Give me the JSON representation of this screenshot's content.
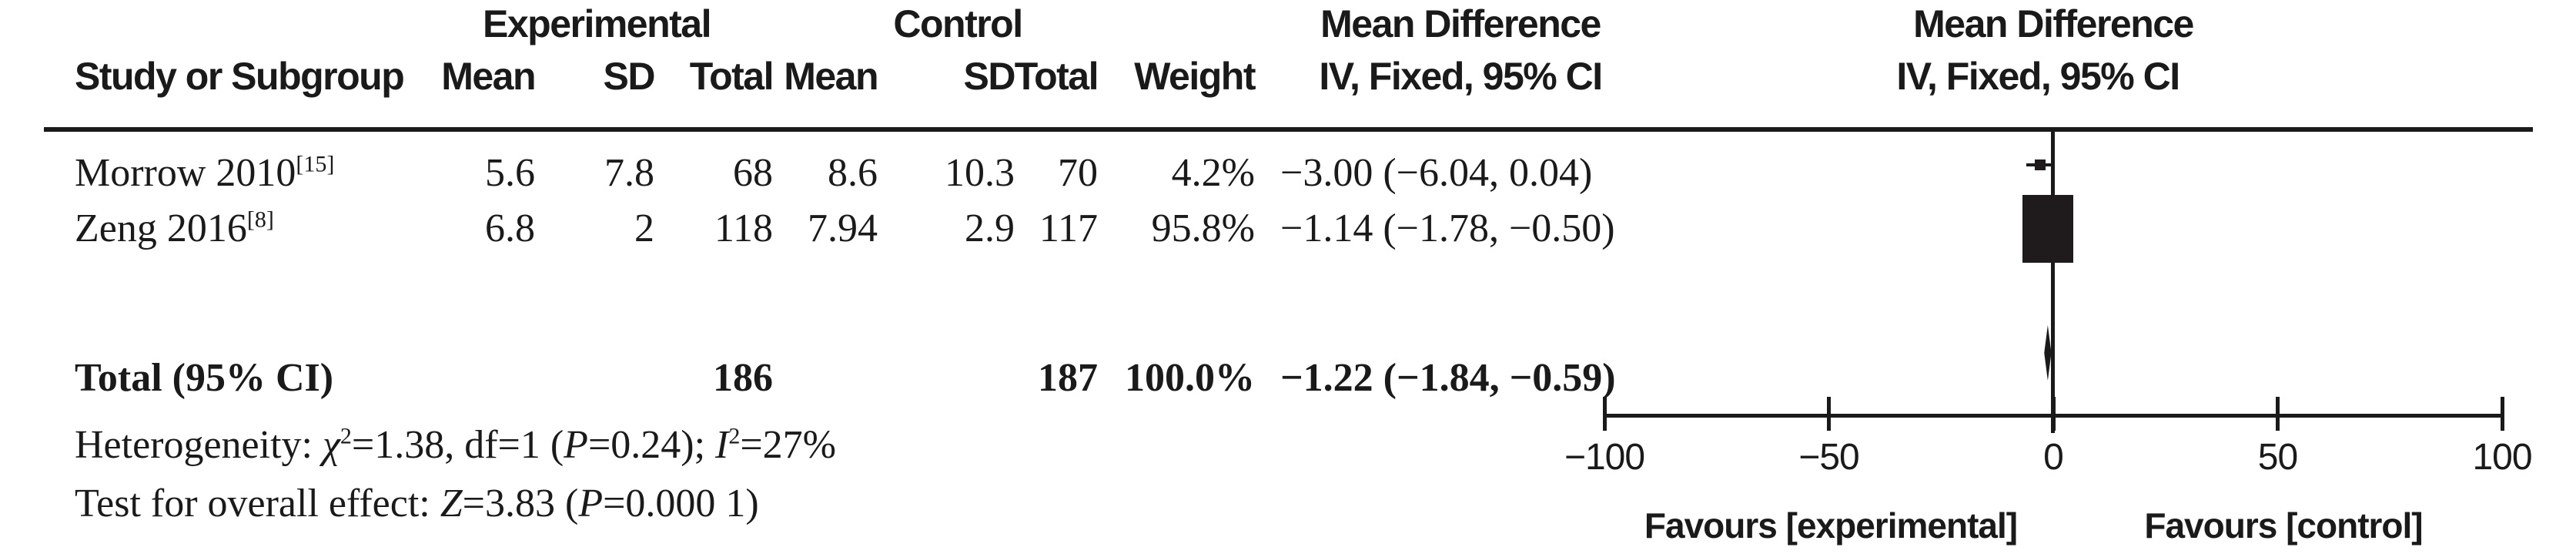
{
  "header": {
    "group1": "Experimental",
    "group2": "Control",
    "md_col_title": "Mean Difference",
    "md_plot_title": "Mean Difference",
    "study": "Study or Subgroup",
    "mean": "Mean",
    "sd": "SD",
    "total": "Total",
    "weight": "Weight",
    "iv_fixed_col": "IV, Fixed, 95% CI",
    "iv_fixed_plot": "IV, Fixed, 95% CI"
  },
  "rows": [
    {
      "study": "Morrow 2010",
      "ref": "[15]",
      "exp_mean": "5.6",
      "exp_sd": "7.8",
      "exp_total": "68",
      "ctrl_mean": "8.6",
      "ctrl_sd": "10.3",
      "ctrl_total": "70",
      "weight": "4.2%",
      "md_ci": "−3.00 (−6.04, 0.04)"
    },
    {
      "study": "Zeng 2016",
      "ref": "[8]",
      "exp_mean": "6.8",
      "exp_sd": "2",
      "exp_total": "118",
      "ctrl_mean": "7.94",
      "ctrl_sd": "2.9",
      "ctrl_total": "117",
      "weight": "95.8%",
      "md_ci": "−1.14 (−1.78, −0.50)"
    }
  ],
  "total_row": {
    "label": "Total (95% CI)",
    "exp_total": "186",
    "ctrl_total": "187",
    "weight": "100.0%",
    "md_ci": "−1.22 (−1.84, −0.59)"
  },
  "stats": {
    "heterogeneity": {
      "prefix": "Heterogeneity: ",
      "chi": "χ",
      "chi_sup": "2",
      "mid1": "=1.38, df=1 (",
      "p": "P",
      "mid2": "=0.24); ",
      "i": "I",
      "i_sup": "2",
      "tail": "=27%"
    },
    "overall": {
      "prefix": "Test for overall effect: ",
      "z": "Z",
      "mid": "=3.83 (",
      "p": "P",
      "tail": "=0.000 1)"
    }
  },
  "chart_data": {
    "type": "forest",
    "title": "Mean Difference",
    "subtitle": "IV, Fixed, 95% CI",
    "x_axis": {
      "min": -100,
      "max": 100,
      "ticks": [
        -100,
        -50,
        0,
        50,
        100
      ],
      "zero_line": 0
    },
    "favours_left": "Favours [experimental]",
    "favours_right": "Favours [control]",
    "studies": [
      {
        "name": "Morrow 2010",
        "md": -3.0,
        "ci_low": -6.04,
        "ci_high": 0.04,
        "weight_pct": 4.2
      },
      {
        "name": "Zeng 2016",
        "md": -1.14,
        "ci_low": -1.78,
        "ci_high": -0.5,
        "weight_pct": 95.8
      }
    ],
    "total": {
      "md": -1.22,
      "ci_low": -1.84,
      "ci_high": -0.59,
      "weight_pct": 100.0
    }
  }
}
